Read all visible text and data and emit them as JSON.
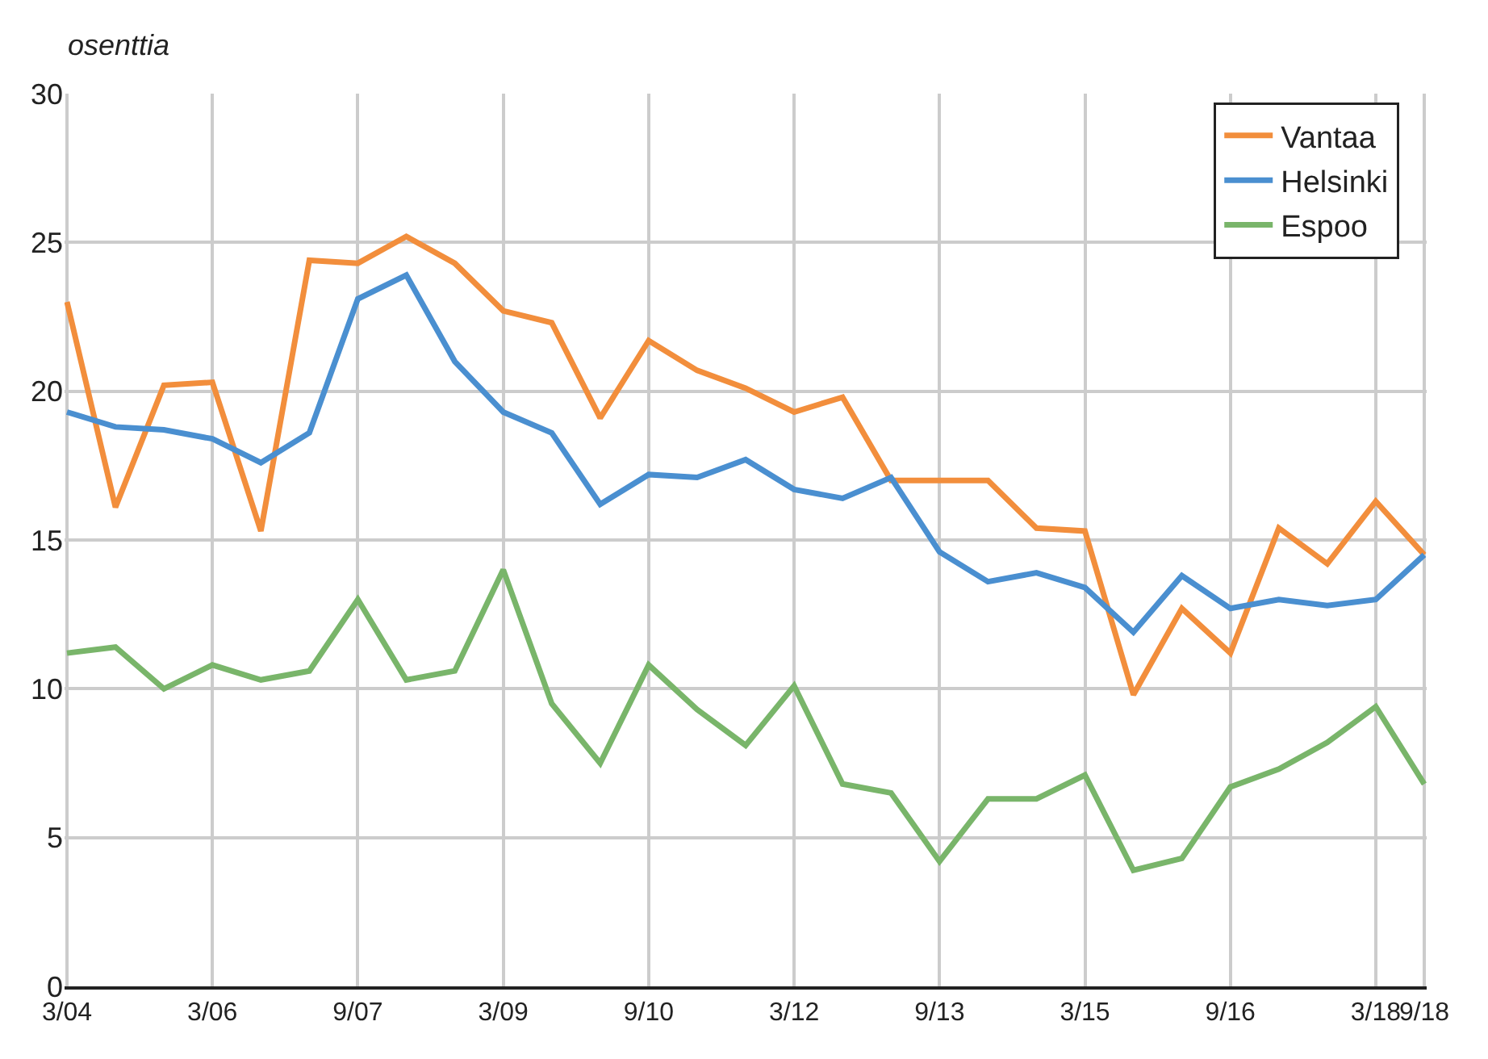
{
  "chart_data": {
    "type": "line",
    "ylabel": "osenttia",
    "categories": [
      "3/04",
      null,
      null,
      "3/06",
      null,
      null,
      "9/07",
      null,
      null,
      "3/09",
      null,
      null,
      "9/10",
      null,
      null,
      "3/12",
      null,
      null,
      "9/13",
      null,
      null,
      "3/15",
      null,
      null,
      "9/16",
      null,
      null,
      "3/18",
      "9/18"
    ],
    "series": [
      {
        "name": "Vantaa",
        "color": "#f28e3c",
        "values": [
          23.0,
          16.1,
          20.2,
          20.3,
          15.3,
          24.4,
          24.3,
          25.2,
          24.3,
          22.7,
          22.3,
          19.1,
          21.7,
          20.7,
          20.1,
          19.3,
          19.8,
          17.0,
          17.0,
          17.0,
          15.4,
          15.3,
          9.8,
          12.7,
          11.2,
          15.4,
          14.2,
          16.3,
          14.5
        ]
      },
      {
        "name": "Helsinki",
        "color": "#4a8fd0",
        "values": [
          19.3,
          18.8,
          18.7,
          18.4,
          17.6,
          18.6,
          23.1,
          23.9,
          21.0,
          19.3,
          18.6,
          16.2,
          17.2,
          17.1,
          17.7,
          16.7,
          16.4,
          17.1,
          14.6,
          13.6,
          13.9,
          13.4,
          11.9,
          13.8,
          12.7,
          13.0,
          12.8,
          13.0,
          14.5
        ]
      },
      {
        "name": "Espoo",
        "color": "#79b56a",
        "values": [
          11.2,
          11.4,
          10.0,
          10.8,
          10.3,
          10.6,
          13.0,
          10.3,
          10.6,
          14.0,
          9.5,
          7.5,
          10.8,
          9.3,
          8.1,
          10.1,
          6.8,
          6.5,
          4.2,
          6.3,
          6.3,
          7.1,
          3.9,
          4.3,
          6.7,
          7.3,
          8.2,
          9.4,
          6.8
        ]
      }
    ],
    "ylim": [
      0,
      30
    ],
    "yticks": [
      0,
      5,
      10,
      15,
      20,
      25,
      30
    ],
    "grid": true,
    "legend": "top right",
    "marker": "none",
    "line_style": "solid"
  }
}
